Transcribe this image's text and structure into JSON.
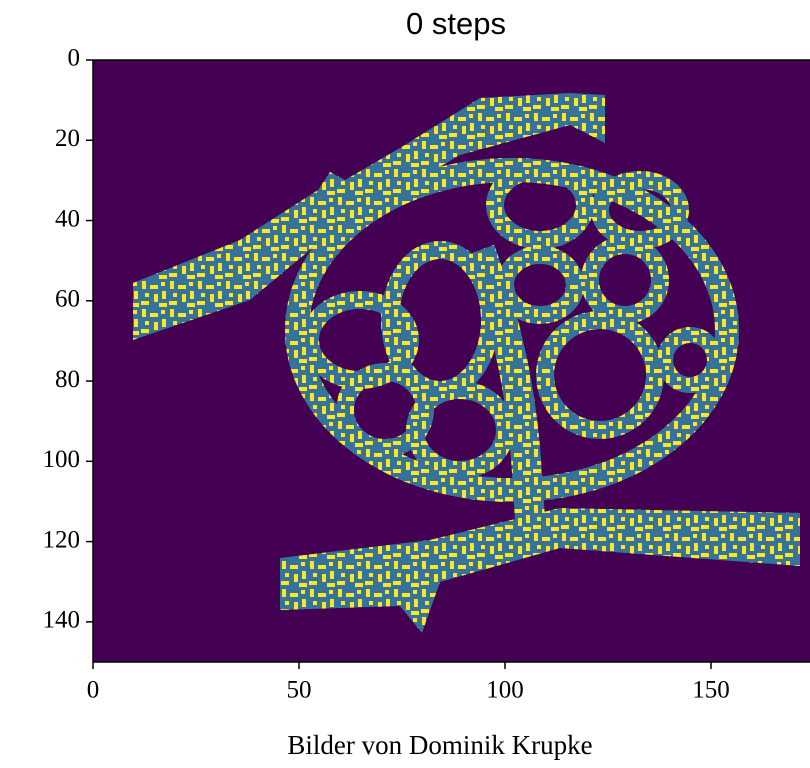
{
  "chart_data": {
    "type": "image",
    "title": "0 steps",
    "xlim": [
      0,
      174
    ],
    "ylim": [
      150,
      0
    ],
    "xticks": [
      0,
      50,
      100,
      150
    ],
    "yticks": [
      0,
      20,
      40,
      60,
      80,
      100,
      120,
      140
    ],
    "colors": {
      "background": "#440154",
      "band": "#36739a",
      "dots": "#fde725"
    }
  },
  "caption": "Bilder von Dominik Krupke"
}
